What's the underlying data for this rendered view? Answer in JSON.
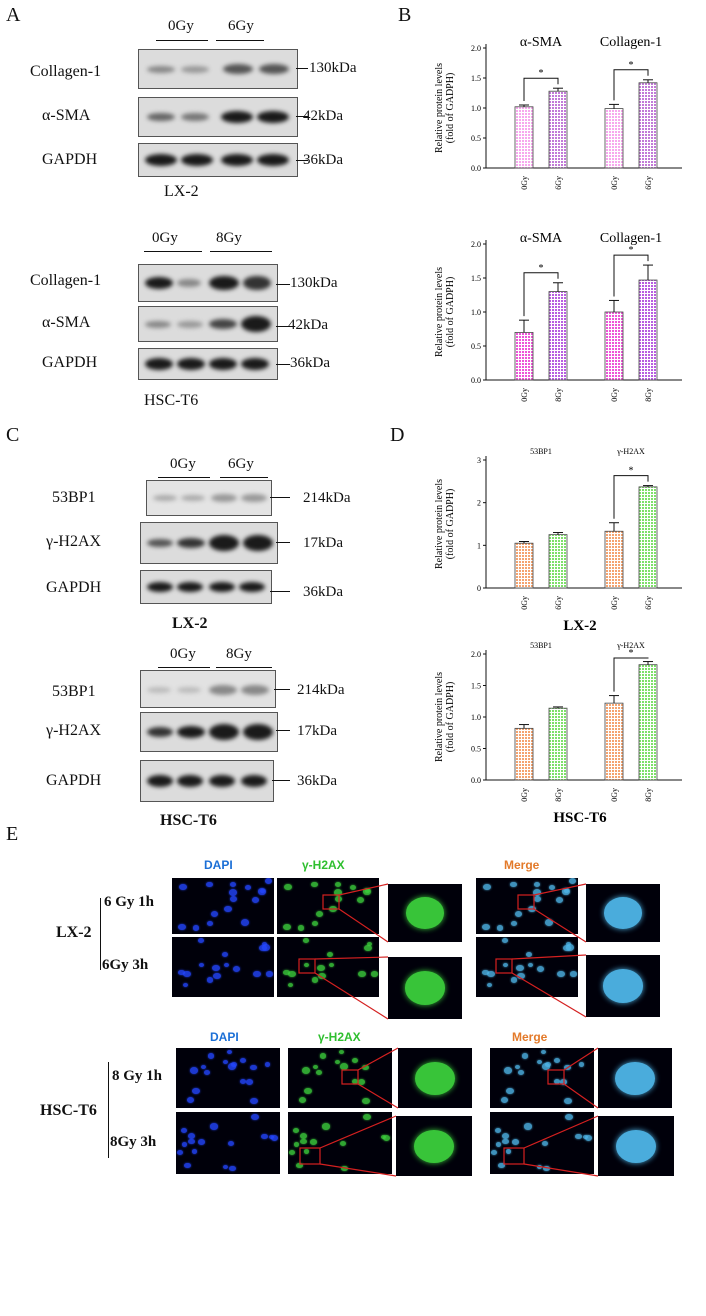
{
  "panels": {
    "A": "A",
    "B": "B",
    "C": "C",
    "D": "D",
    "E": "E"
  },
  "panelA": {
    "top": {
      "conds": [
        "0Gy",
        "6Gy"
      ],
      "rows": [
        "Collagen-1",
        "α-SMA",
        "GAPDH"
      ],
      "kdas": [
        "130kDa",
        "42kDa",
        "36kDa"
      ],
      "cell": "LX-2"
    },
    "bottom": {
      "conds": [
        "0Gy",
        "8Gy"
      ],
      "rows": [
        "Collagen-1",
        "α-SMA",
        "GAPDH"
      ],
      "kdas": [
        "130kDa",
        "42kDa",
        "36kDa"
      ],
      "cell": "HSC-T6"
    }
  },
  "panelC": {
    "top": {
      "conds": [
        "0Gy",
        "6Gy"
      ],
      "rows": [
        "53BP1",
        "γ-H2AX",
        "GAPDH"
      ],
      "kdas": [
        "214kDa",
        "17kDa",
        "36kDa"
      ],
      "cell": "LX-2"
    },
    "bottom": {
      "conds": [
        "0Gy",
        "8Gy"
      ],
      "rows": [
        "53BP1",
        "γ-H2AX",
        "GAPDH"
      ],
      "kdas": [
        "214kDa",
        "17kDa",
        "36kDa"
      ],
      "cell": "HSC-T6"
    }
  },
  "chart_data": [
    {
      "type": "bar",
      "panel": "B-top",
      "ylabel": "Relative protein levels (fold of GADPH)",
      "ylim": [
        0,
        2.0
      ],
      "yticks": [
        "0.0",
        "0.5",
        "1.0",
        "1.5",
        "2.0"
      ],
      "groups": [
        "α-SMA",
        "Collagen-1"
      ],
      "categories": [
        "0Gy",
        "6Gy",
        "0Gy",
        "6Gy"
      ],
      "values": [
        1.02,
        1.28,
        0.99,
        1.42
      ],
      "errors": [
        0.03,
        0.05,
        0.07,
        0.05
      ],
      "significance": [
        "*",
        "*"
      ],
      "colors": [
        "#f7a8ee",
        "#c27ad8"
      ]
    },
    {
      "type": "bar",
      "panel": "B-bottom",
      "ylabel": "Relative protein levels (fold of GADPH)",
      "ylim": [
        0,
        2.0
      ],
      "yticks": [
        "0.0",
        "0.5",
        "1.0",
        "1.5",
        "2.0"
      ],
      "groups": [
        "α-SMA",
        "Collagen-1"
      ],
      "categories": [
        "0Gy",
        "8Gy",
        "0Gy",
        "8Gy"
      ],
      "values": [
        0.7,
        1.3,
        1.0,
        1.47
      ],
      "errors": [
        0.18,
        0.13,
        0.17,
        0.22
      ],
      "significance": [
        "*",
        "*"
      ],
      "colors": [
        "#ee55d8",
        "#b85ee0"
      ]
    },
    {
      "type": "bar",
      "panel": "D-top",
      "ylabel": "Relative protein levels (fold of GADPH)",
      "ylim": [
        0,
        3
      ],
      "yticks": [
        "0",
        "1",
        "2",
        "3"
      ],
      "groups": [
        "53BP1",
        "γ-H2AX"
      ],
      "categories": [
        "0Gy",
        "6Gy",
        "0Gy",
        "6Gy"
      ],
      "values": [
        1.05,
        1.25,
        1.33,
        2.37
      ],
      "errors": [
        0.04,
        0.05,
        0.2,
        0.03
      ],
      "significance": [
        "",
        "*"
      ],
      "colors": [
        "#f5a36f",
        "#7ee06a"
      ],
      "title": "LX-2"
    },
    {
      "type": "bar",
      "panel": "D-bottom",
      "ylabel": "Relative protein levels (fold of GADPH)",
      "ylim": [
        0,
        2.0
      ],
      "yticks": [
        "0.0",
        "0.5",
        "1.0",
        "1.5",
        "2.0"
      ],
      "groups": [
        "53BP1",
        "γ-H2AX"
      ],
      "categories": [
        "0Gy",
        "8Gy",
        "0Gy",
        "8Gy"
      ],
      "values": [
        0.82,
        1.14,
        1.22,
        1.83
      ],
      "errors": [
        0.06,
        0.02,
        0.12,
        0.05
      ],
      "significance": [
        "",
        "*"
      ],
      "colors": [
        "#f5a36f",
        "#7ee06a"
      ],
      "title": "HSC-T6"
    }
  ],
  "panelE": {
    "top": {
      "headers": [
        "DAPI",
        "γ-H2AX",
        "Merge"
      ],
      "rows": [
        "6 Gy  1h",
        "6Gy  3h"
      ],
      "cell": "LX-2"
    },
    "bottom": {
      "headers": [
        "DAPI",
        "γ-H2AX",
        "Merge"
      ],
      "rows": [
        "8 Gy  1h",
        "8Gy  3h"
      ],
      "cell": "HSC-T6"
    },
    "colors": {
      "dapi": "#1b6fd6",
      "h2ax": "#2fbf2f",
      "merge": "#e37a2a"
    }
  }
}
